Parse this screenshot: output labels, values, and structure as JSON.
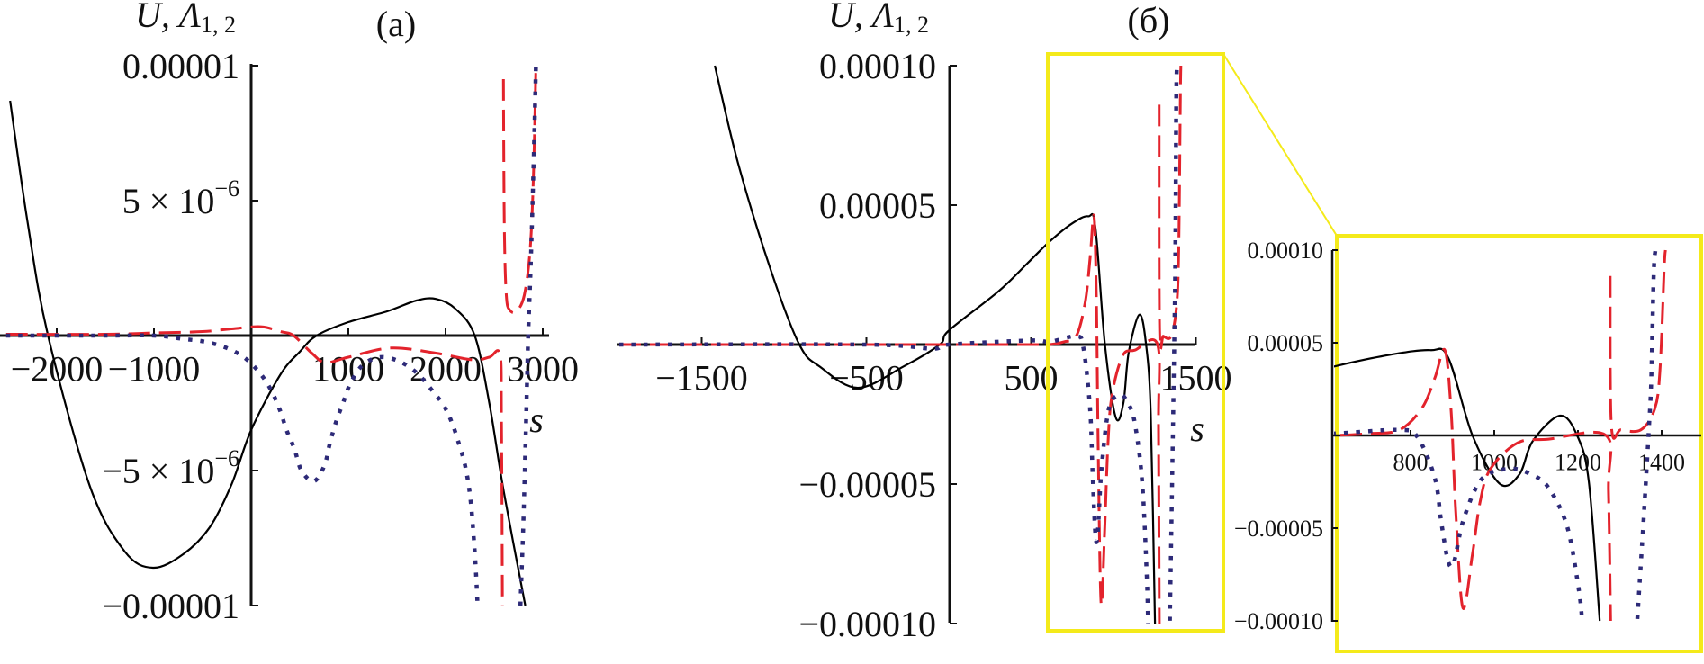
{
  "colors": {
    "U": "#000000",
    "Lambda1": "#e3232c",
    "Lambda2": "#2d2a78",
    "zoom_box": "#f4ea1a"
  },
  "chart_data": [
    {
      "panel": "(a)",
      "type": "line",
      "ylabel": {
        "base": "U, Λ",
        "sub": "1, 2"
      },
      "xlabel": "s",
      "xlim": [
        -2540,
        3000
      ],
      "ylim": [
        -1e-05,
        1e-05
      ],
      "xticks": [
        {
          "value": -2000,
          "text": "−2000"
        },
        {
          "value": -1000,
          "text": "−1000"
        },
        {
          "value": 1000,
          "text": "1000"
        },
        {
          "value": 2000,
          "text": "2000"
        },
        {
          "value": 3000,
          "text": "3000"
        }
      ],
      "yticks": [
        {
          "value": 1e-05,
          "base": "0.00001",
          "exp": ""
        },
        {
          "value": 5e-06,
          "base": "5 × 10",
          "exp": "−6"
        },
        {
          "value": -5e-06,
          "base": "−5 × 10",
          "exp": "−6"
        },
        {
          "value": -1e-05,
          "base": "−0.00001",
          "exp": ""
        }
      ],
      "grid": false,
      "series": [
        {
          "style": "solid",
          "color": "#000000",
          "segments": [
            [
              [
                -2480,
                8.7e-06
              ],
              [
                -2300,
                4.2e-06
              ],
              [
                -2090,
                0
              ],
              [
                -1657,
                -5.6e-06
              ],
              [
                -1300,
                -8e-06
              ],
              [
                -1010,
                -8.6e-06
              ],
              [
                -700,
                -8.1e-06
              ],
              [
                -426,
                -7.1e-06
              ],
              [
                -200,
                -5.5e-06
              ],
              [
                0,
                -3.5e-06
              ],
              [
                300,
                -1.45e-06
              ],
              [
                500,
                -6e-07
              ],
              [
                673,
                0
              ],
              [
                1000,
                5e-07
              ],
              [
                1400,
                9e-07
              ],
              [
                1700,
                1.3e-06
              ],
              [
                1900,
                1.36e-06
              ],
              [
                2100,
                1e-06
              ],
              [
                2300,
                0
              ],
              [
                2450,
                -2.5e-06
              ],
              [
                2600,
                -5.8e-06
              ],
              [
                2820,
                -1e-05
              ]
            ]
          ]
        },
        {
          "style": "dashed",
          "color": "#e3232c",
          "segments": [
            [
              [
                -2520,
                5e-08
              ],
              [
                -1500,
                5e-08
              ],
              [
                -1000,
                1e-07
              ],
              [
                -500,
                1.5e-07
              ],
              [
                -200,
                2.5e-07
              ],
              [
                100,
                3.3e-07
              ],
              [
                300,
                1.5e-07
              ],
              [
                436,
                0.0
              ],
              [
                627,
                -6.6e-07
              ],
              [
                764,
                -1e-06
              ],
              [
                1000,
                -8e-07
              ],
              [
                1436,
                -4.6e-07
              ],
              [
                1900,
                -6.5e-07
              ],
              [
                2280,
                -9e-07
              ],
              [
                2450,
                -8e-07
              ],
              [
                2560,
                -7e-07
              ],
              [
                2575,
                -3e-06
              ],
              [
                2585,
                -1e-05
              ]
            ],
            [
              [
                2595,
                9.5e-06
              ],
              [
                2605,
                4e-06
              ],
              [
                2625,
                1.5e-06
              ],
              [
                2660,
                9.5e-07
              ],
              [
                2730,
                9e-07
              ],
              [
                2810,
                1.5e-06
              ],
              [
                2870,
                3.2e-06
              ],
              [
                2905,
                6e-06
              ],
              [
                2930,
                1e-05
              ]
            ]
          ]
        },
        {
          "style": "dotted",
          "color": "#2d2a78",
          "segments": [
            [
              [
                -2520,
                0
              ],
              [
                -1500,
                0
              ],
              [
                -1000,
                0
              ],
              [
                -685,
                -1.3e-07
              ],
              [
                -472,
                -2.3e-07
              ],
              [
                -250,
                -4.6e-07
              ],
              [
                -65,
                -8.3e-07
              ],
              [
                93,
                -1.4e-06
              ],
              [
                209,
                -2.05e-06
              ],
              [
                300,
                -2.8e-06
              ],
              [
                364,
                -3.5e-06
              ],
              [
                445,
                -4.2e-06
              ],
              [
                518,
                -5e-06
              ],
              [
                645,
                -5.4e-06
              ],
              [
                755,
                -4.8e-06
              ],
              [
                809,
                -4e-06
              ],
              [
                873,
                -3.2e-06
              ],
              [
                945,
                -2.5e-06
              ],
              [
                1018,
                -1.8e-06
              ],
              [
                1145,
                -1.1e-06
              ],
              [
                1327,
                -8e-07
              ],
              [
                1527,
                -9.6e-07
              ],
              [
                1709,
                -1.4e-06
              ],
              [
                1855,
                -2e-06
              ],
              [
                1982,
                -2.6e-06
              ],
              [
                2073,
                -3.3e-06
              ],
              [
                2145,
                -4.1e-06
              ],
              [
                2200,
                -4.8e-06
              ],
              [
                2255,
                -6e-06
              ],
              [
                2300,
                -8e-06
              ],
              [
                2330,
                -1e-05
              ]
            ],
            [
              [
                2770,
                -1e-05
              ],
              [
                2800,
                -7e-06
              ],
              [
                2830,
                -3e-06
              ],
              [
                2850,
                0
              ],
              [
                2880,
                3e-06
              ],
              [
                2910,
                7e-06
              ],
              [
                2930,
                1e-05
              ]
            ]
          ]
        }
      ]
    },
    {
      "panel": "(б)",
      "type": "line",
      "ylabel": {
        "base": "U, Λ",
        "sub": "1, 2"
      },
      "xlabel": "s",
      "xlim": [
        -2000,
        1500
      ],
      "ylim": [
        -0.0001,
        0.0001
      ],
      "xticks": [
        {
          "value": -1500,
          "text": "−1500"
        },
        {
          "value": -500,
          "text": "−500"
        },
        {
          "value": 500,
          "text": "500"
        },
        {
          "value": 1500,
          "text": "1500"
        }
      ],
      "yticks": [
        {
          "value": 0.0001,
          "base": "0.00010",
          "exp": ""
        },
        {
          "value": 5e-05,
          "base": "0.00005",
          "exp": ""
        },
        {
          "value": -5e-05,
          "base": "−0.00005",
          "exp": ""
        },
        {
          "value": -0.0001,
          "base": "−0.00010",
          "exp": ""
        }
      ],
      "zoom_region": {
        "xlim": [
          600,
          1500
        ],
        "ylim": [
          -0.0001,
          0.0001
        ]
      },
      "grid": false,
      "series": [
        {
          "style": "solid",
          "color": "#000000",
          "segments": [
            [
              [
                -1420,
                0.0001
              ],
              [
                -1279,
                6.5e-05
              ],
              [
                -1082,
                2.7e-05
              ],
              [
                -907,
                0
              ],
              [
                -781,
                -8e-06
              ],
              [
                -552,
                -1.55e-05
              ],
              [
                -279,
                -8e-06
              ],
              [
                -55,
                0
              ],
              [
                0,
                5e-06
              ],
              [
                300,
                1.9e-05
              ],
              [
                475,
                2.9e-05
              ],
              [
                613,
                3.7e-05
              ],
              [
                750,
                4.35e-05
              ],
              [
                847,
                4.6e-05
              ],
              [
                890,
                4.2e-05
              ],
              [
                948,
                0
              ],
              [
                1013,
                -2.6e-05
              ],
              [
                1060,
                -2.1e-05
              ],
              [
                1092,
                -3e-06
              ],
              [
                1157,
                1.07e-05
              ],
              [
                1198,
                0
              ],
              [
                1226,
                -2.5e-05
              ],
              [
                1252,
                -0.0001
              ]
            ]
          ]
        },
        {
          "style": "dashed",
          "color": "#e3232c",
          "segments": [
            [
              [
                -2000,
                0
              ],
              [
                0,
                0
              ],
              [
                500,
                0
              ],
              [
                613,
                0
              ],
              [
                700,
                1e-06
              ],
              [
                774,
                3e-06
              ],
              [
                828,
                1.5e-05
              ],
              [
                858,
                3.1e-05
              ],
              [
                882,
                4.6e-05
              ],
              [
                897,
                1.3e-05
              ],
              [
                908,
                -4.1e-05
              ],
              [
                925,
                -9.3e-05
              ],
              [
                948,
                -6.4e-05
              ],
              [
                966,
                -3.6e-05
              ],
              [
                991,
                -1.8e-05
              ],
              [
                1056,
                -4e-06
              ],
              [
                1130,
                -2e-06
              ],
              [
                1267,
                0
              ],
              [
                1273,
                -3e-05
              ],
              [
                1278,
                -0.0001
              ]
            ],
            [
              [
                1277,
                8.6e-05
              ],
              [
                1280,
                5e-06
              ],
              [
                1303,
                3e-06
              ],
              [
                1350,
                3e-06
              ],
              [
                1383,
                1.4e-05
              ],
              [
                1396,
                3.5e-05
              ],
              [
                1406,
                9e-05
              ],
              [
                1409,
                0.0001
              ]
            ]
          ]
        },
        {
          "style": "dotted",
          "color": "#2d2a78",
          "segments": [
            [
              [
                -2000,
                0
              ],
              [
                -500,
                0
              ],
              [
                -100,
                -1.5e-06
              ],
              [
                0,
                0
              ],
              [
                500,
                1.5e-06
              ],
              [
                613,
                1e-06
              ],
              [
                774,
                3e-06
              ],
              [
                817,
                -1e-06
              ],
              [
                858,
                -2.3e-05
              ],
              [
                873,
                -4.6e-05
              ],
              [
                890,
                -6.8e-05
              ],
              [
                904,
                -6.8e-05
              ],
              [
                927,
                -4.5e-05
              ],
              [
                972,
                -2.3e-05
              ],
              [
                1039,
                -1.8e-05
              ],
              [
                1088,
                -2.1e-05
              ],
              [
                1129,
                -2.8e-05
              ],
              [
                1174,
                -4.9e-05
              ],
              [
                1202,
                -8.3e-05
              ],
              [
                1210,
                -0.0001
              ]
            ],
            [
              [
                1342,
                -9.9e-05
              ],
              [
                1355,
                -5.2e-05
              ],
              [
                1364,
                -1.8e-05
              ],
              [
                1370,
                6e-06
              ],
              [
                1375,
                2.9e-05
              ],
              [
                1381,
                8.7e-05
              ],
              [
                1385,
                0.0001
              ]
            ]
          ]
        }
      ]
    },
    {
      "panel": "inset",
      "type": "line",
      "data_from_panel": "(б)",
      "xlim": [
        610,
        1500
      ],
      "ylim": [
        -0.0001,
        0.0001
      ],
      "xticks": [
        {
          "value": 800,
          "text": "800"
        },
        {
          "value": 1000,
          "text": "1000"
        },
        {
          "value": 1200,
          "text": "1200"
        },
        {
          "value": 1400,
          "text": "1400"
        }
      ],
      "yticks": [
        {
          "value": 0.0001,
          "base": "0.00010",
          "exp": ""
        },
        {
          "value": 5e-05,
          "base": "0.00005",
          "exp": ""
        },
        {
          "value": -5e-05,
          "base": "−0.00005",
          "exp": ""
        },
        {
          "value": -0.0001,
          "base": "−0.00010",
          "exp": ""
        }
      ],
      "grid": false
    }
  ]
}
